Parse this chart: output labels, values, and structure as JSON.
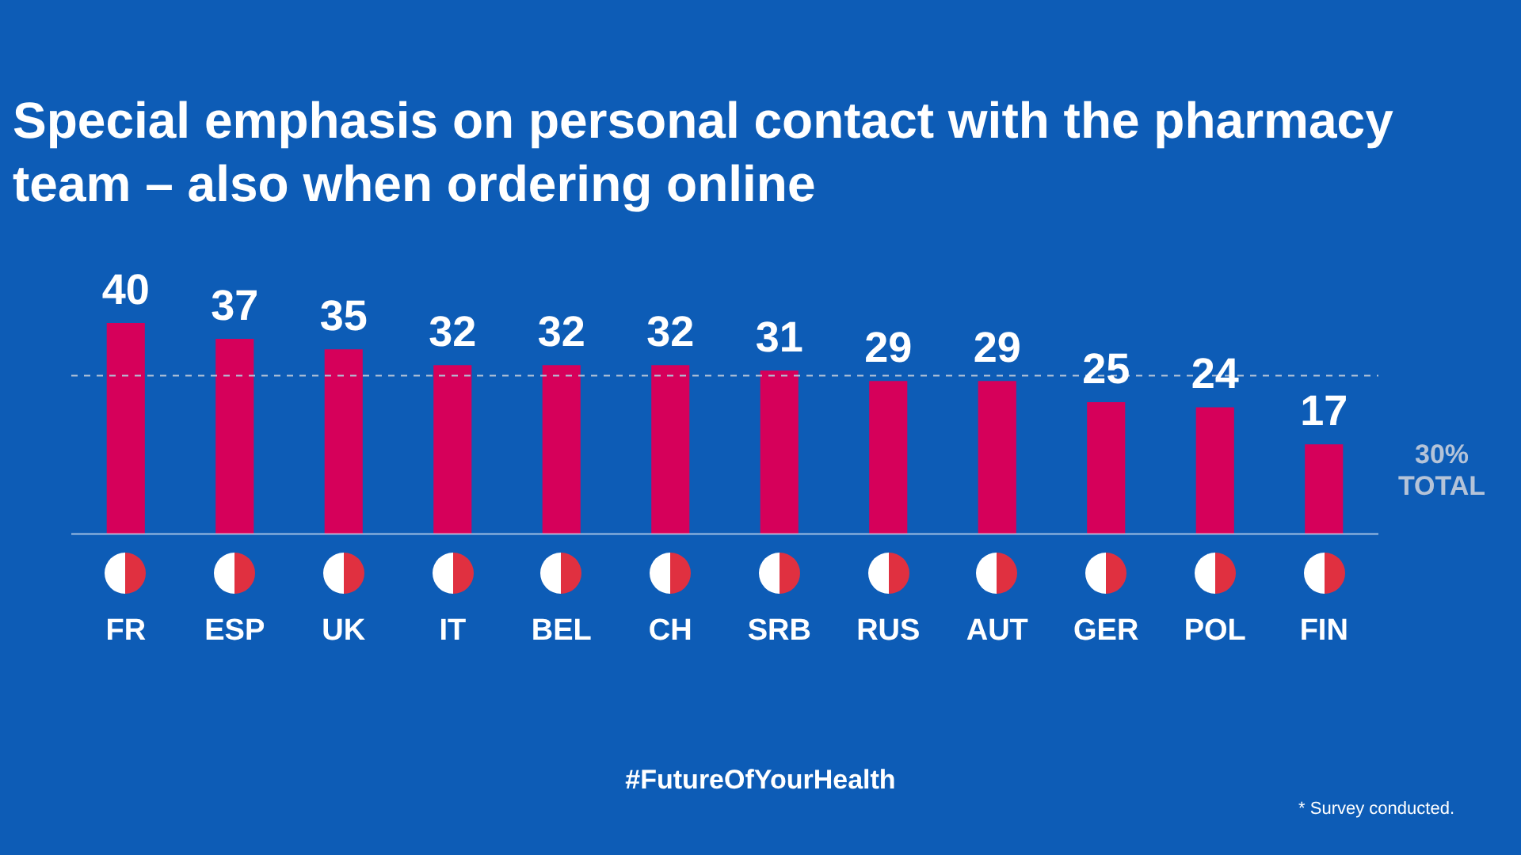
{
  "chart_data": {
    "type": "bar",
    "title": "Special emphasis on personal contact with the pharmacy team – also when ordering online",
    "categories": [
      "FR",
      "ESP",
      "UK",
      "IT",
      "BEL",
      "CH",
      "SRB",
      "RUS",
      "AUT",
      "GER",
      "POL",
      "FIN"
    ],
    "values": [
      40,
      37,
      35,
      32,
      32,
      32,
      31,
      29,
      29,
      25,
      24,
      17
    ],
    "color": "#d6005a",
    "data_labels": true,
    "grid": false,
    "legend": false,
    "ref_lines": [
      {
        "axis": "y",
        "value": 30,
        "label": "30% TOTAL",
        "color": "#b4c3d8",
        "line_style": "dashed"
      }
    ],
    "annotations": [
      "#FutureOfYourHealth",
      "* Survey conducted."
    ]
  }
}
